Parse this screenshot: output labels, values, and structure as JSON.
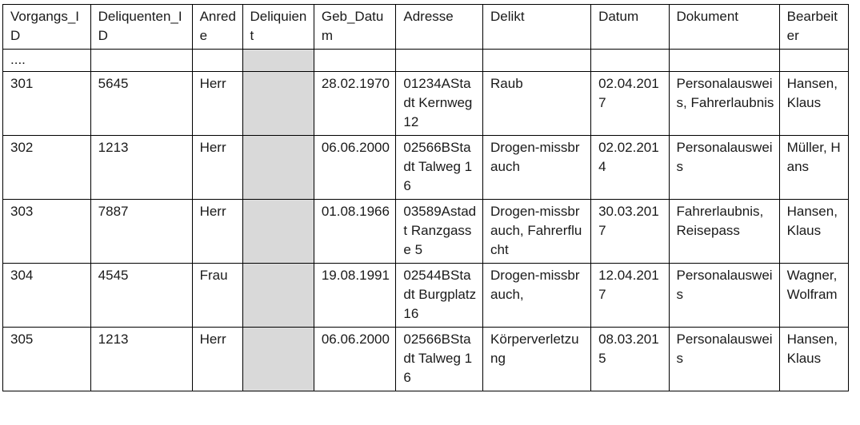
{
  "table": {
    "headers": [
      "Vorgangs_ID",
      "Deliquenten_ID",
      "Anrede",
      "Deliquient",
      "Geb_Datum",
      "Adresse",
      "Delikt",
      "Datum",
      "Dokument",
      "Bearbeiter"
    ],
    "ellipsis_row": "....",
    "rows": [
      [
        "301",
        "5645",
        "Herr",
        "",
        "28.02.1970",
        "01234AStadt Kernweg 12",
        "Raub",
        "02.04.2017",
        "Personalausweis, Fahrerlaubnis",
        "Hansen, Klaus"
      ],
      [
        "302",
        "1213",
        "Herr",
        "",
        "06.06.2000",
        "02566BStadt Talweg 16",
        "Drogen-missbrauch",
        "02.02.2014",
        "Personalausweis",
        "Müller, Hans"
      ],
      [
        "303",
        "7887",
        "Herr",
        "",
        "01.08.1966",
        "03589Astadt Ranzgasse 5",
        "Drogen-missbrauch, Fahrerflucht",
        "30.03.2017",
        "Fahrerlaubnis, Reisepass",
        "Hansen, Klaus"
      ],
      [
        "304",
        "4545",
        "Frau",
        "",
        "19.08.1991",
        "02544BStadt Burgplatz 16",
        "Drogen-missbrauch,",
        "12.04.2017",
        "Personalausweis",
        "Wagner, Wolfram"
      ],
      [
        "305",
        "1213",
        "Herr",
        "",
        "06.06.2000",
        "02566BStadt Talweg 16",
        "Körperverletzung",
        "08.03.2015",
        "Personalausweis",
        "Hansen, Klaus"
      ]
    ]
  }
}
